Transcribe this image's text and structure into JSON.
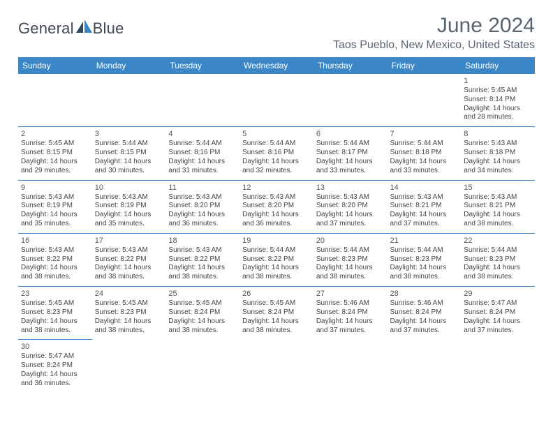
{
  "brand": {
    "name_part1": "General",
    "name_part2": "Blue"
  },
  "colors": {
    "header_bg": "#3b86c6",
    "header_text": "#ffffff",
    "cell_border": "#3b86c6",
    "title_color": "#5a6470",
    "body_text": "#444444",
    "logo_dark": "#33475f",
    "logo_blue": "#3b86c6"
  },
  "title": "June 2024",
  "location": "Taos Pueblo, New Mexico, United States",
  "day_headers": [
    "Sunday",
    "Monday",
    "Tuesday",
    "Wednesday",
    "Thursday",
    "Friday",
    "Saturday"
  ],
  "weeks": [
    [
      null,
      null,
      null,
      null,
      null,
      null,
      {
        "n": "1",
        "l1": "Sunrise: 5:45 AM",
        "l2": "Sunset: 8:14 PM",
        "l3": "Daylight: 14 hours",
        "l4": "and 28 minutes."
      }
    ],
    [
      {
        "n": "2",
        "l1": "Sunrise: 5:45 AM",
        "l2": "Sunset: 8:15 PM",
        "l3": "Daylight: 14 hours",
        "l4": "and 29 minutes."
      },
      {
        "n": "3",
        "l1": "Sunrise: 5:44 AM",
        "l2": "Sunset: 8:15 PM",
        "l3": "Daylight: 14 hours",
        "l4": "and 30 minutes."
      },
      {
        "n": "4",
        "l1": "Sunrise: 5:44 AM",
        "l2": "Sunset: 8:16 PM",
        "l3": "Daylight: 14 hours",
        "l4": "and 31 minutes."
      },
      {
        "n": "5",
        "l1": "Sunrise: 5:44 AM",
        "l2": "Sunset: 8:16 PM",
        "l3": "Daylight: 14 hours",
        "l4": "and 32 minutes."
      },
      {
        "n": "6",
        "l1": "Sunrise: 5:44 AM",
        "l2": "Sunset: 8:17 PM",
        "l3": "Daylight: 14 hours",
        "l4": "and 33 minutes."
      },
      {
        "n": "7",
        "l1": "Sunrise: 5:44 AM",
        "l2": "Sunset: 8:18 PM",
        "l3": "Daylight: 14 hours",
        "l4": "and 33 minutes."
      },
      {
        "n": "8",
        "l1": "Sunrise: 5:43 AM",
        "l2": "Sunset: 8:18 PM",
        "l3": "Daylight: 14 hours",
        "l4": "and 34 minutes."
      }
    ],
    [
      {
        "n": "9",
        "l1": "Sunrise: 5:43 AM",
        "l2": "Sunset: 8:19 PM",
        "l3": "Daylight: 14 hours",
        "l4": "and 35 minutes."
      },
      {
        "n": "10",
        "l1": "Sunrise: 5:43 AM",
        "l2": "Sunset: 8:19 PM",
        "l3": "Daylight: 14 hours",
        "l4": "and 35 minutes."
      },
      {
        "n": "11",
        "l1": "Sunrise: 5:43 AM",
        "l2": "Sunset: 8:20 PM",
        "l3": "Daylight: 14 hours",
        "l4": "and 36 minutes."
      },
      {
        "n": "12",
        "l1": "Sunrise: 5:43 AM",
        "l2": "Sunset: 8:20 PM",
        "l3": "Daylight: 14 hours",
        "l4": "and 36 minutes."
      },
      {
        "n": "13",
        "l1": "Sunrise: 5:43 AM",
        "l2": "Sunset: 8:20 PM",
        "l3": "Daylight: 14 hours",
        "l4": "and 37 minutes."
      },
      {
        "n": "14",
        "l1": "Sunrise: 5:43 AM",
        "l2": "Sunset: 8:21 PM",
        "l3": "Daylight: 14 hours",
        "l4": "and 37 minutes."
      },
      {
        "n": "15",
        "l1": "Sunrise: 5:43 AM",
        "l2": "Sunset: 8:21 PM",
        "l3": "Daylight: 14 hours",
        "l4": "and 38 minutes."
      }
    ],
    [
      {
        "n": "16",
        "l1": "Sunrise: 5:43 AM",
        "l2": "Sunset: 8:22 PM",
        "l3": "Daylight: 14 hours",
        "l4": "and 38 minutes."
      },
      {
        "n": "17",
        "l1": "Sunrise: 5:43 AM",
        "l2": "Sunset: 8:22 PM",
        "l3": "Daylight: 14 hours",
        "l4": "and 38 minutes."
      },
      {
        "n": "18",
        "l1": "Sunrise: 5:43 AM",
        "l2": "Sunset: 8:22 PM",
        "l3": "Daylight: 14 hours",
        "l4": "and 38 minutes."
      },
      {
        "n": "19",
        "l1": "Sunrise: 5:44 AM",
        "l2": "Sunset: 8:22 PM",
        "l3": "Daylight: 14 hours",
        "l4": "and 38 minutes."
      },
      {
        "n": "20",
        "l1": "Sunrise: 5:44 AM",
        "l2": "Sunset: 8:23 PM",
        "l3": "Daylight: 14 hours",
        "l4": "and 38 minutes."
      },
      {
        "n": "21",
        "l1": "Sunrise: 5:44 AM",
        "l2": "Sunset: 8:23 PM",
        "l3": "Daylight: 14 hours",
        "l4": "and 38 minutes."
      },
      {
        "n": "22",
        "l1": "Sunrise: 5:44 AM",
        "l2": "Sunset: 8:23 PM",
        "l3": "Daylight: 14 hours",
        "l4": "and 38 minutes."
      }
    ],
    [
      {
        "n": "23",
        "l1": "Sunrise: 5:45 AM",
        "l2": "Sunset: 8:23 PM",
        "l3": "Daylight: 14 hours",
        "l4": "and 38 minutes."
      },
      {
        "n": "24",
        "l1": "Sunrise: 5:45 AM",
        "l2": "Sunset: 8:23 PM",
        "l3": "Daylight: 14 hours",
        "l4": "and 38 minutes."
      },
      {
        "n": "25",
        "l1": "Sunrise: 5:45 AM",
        "l2": "Sunset: 8:24 PM",
        "l3": "Daylight: 14 hours",
        "l4": "and 38 minutes."
      },
      {
        "n": "26",
        "l1": "Sunrise: 5:45 AM",
        "l2": "Sunset: 8:24 PM",
        "l3": "Daylight: 14 hours",
        "l4": "and 38 minutes."
      },
      {
        "n": "27",
        "l1": "Sunrise: 5:46 AM",
        "l2": "Sunset: 8:24 PM",
        "l3": "Daylight: 14 hours",
        "l4": "and 37 minutes."
      },
      {
        "n": "28",
        "l1": "Sunrise: 5:46 AM",
        "l2": "Sunset: 8:24 PM",
        "l3": "Daylight: 14 hours",
        "l4": "and 37 minutes."
      },
      {
        "n": "29",
        "l1": "Sunrise: 5:47 AM",
        "l2": "Sunset: 8:24 PM",
        "l3": "Daylight: 14 hours",
        "l4": "and 37 minutes."
      }
    ],
    [
      {
        "n": "30",
        "l1": "Sunrise: 5:47 AM",
        "l2": "Sunset: 8:24 PM",
        "l3": "Daylight: 14 hours",
        "l4": "and 36 minutes."
      },
      null,
      null,
      null,
      null,
      null,
      null
    ]
  ]
}
